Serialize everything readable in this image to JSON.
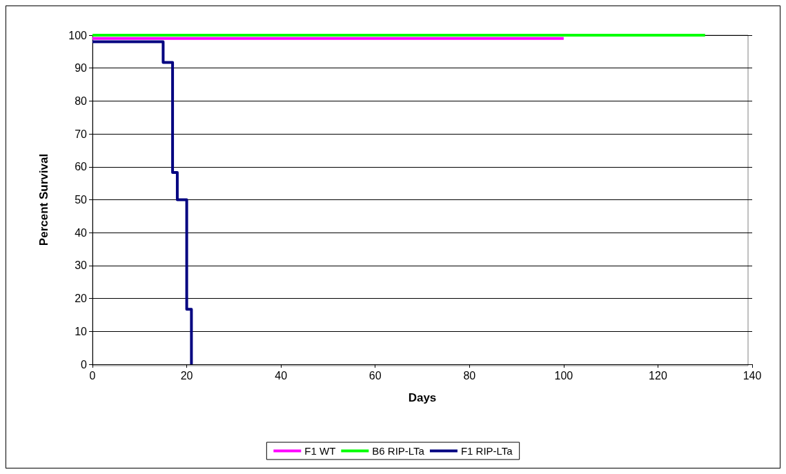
{
  "chart_data": {
    "type": "step",
    "xlabel": "Days",
    "ylabel": "Percent Survival",
    "xlim": [
      0,
      140
    ],
    "xticks": [
      0,
      20,
      40,
      60,
      80,
      100,
      120,
      140
    ],
    "ylim": [
      0,
      100
    ],
    "yticks": [
      0,
      10,
      20,
      30,
      40,
      50,
      60,
      70,
      80,
      90,
      100
    ],
    "grid": "y",
    "legend": "bottom",
    "marker": "none",
    "line_style": "solid",
    "series": [
      {
        "name": "F1 WT",
        "color": "#ff00ff",
        "x": [
          0,
          100
        ],
        "values": [
          99,
          99
        ]
      },
      {
        "name": "B6 RIP-LTa",
        "color": "#00ff00",
        "x": [
          0,
          130
        ],
        "values": [
          100,
          100
        ]
      },
      {
        "name": "F1 RIP-LTa",
        "color": "#000080",
        "x": [
          0,
          15,
          17,
          18,
          20,
          21
        ],
        "values": [
          98,
          91.7,
          58.3,
          50,
          16.7,
          0
        ]
      }
    ]
  }
}
